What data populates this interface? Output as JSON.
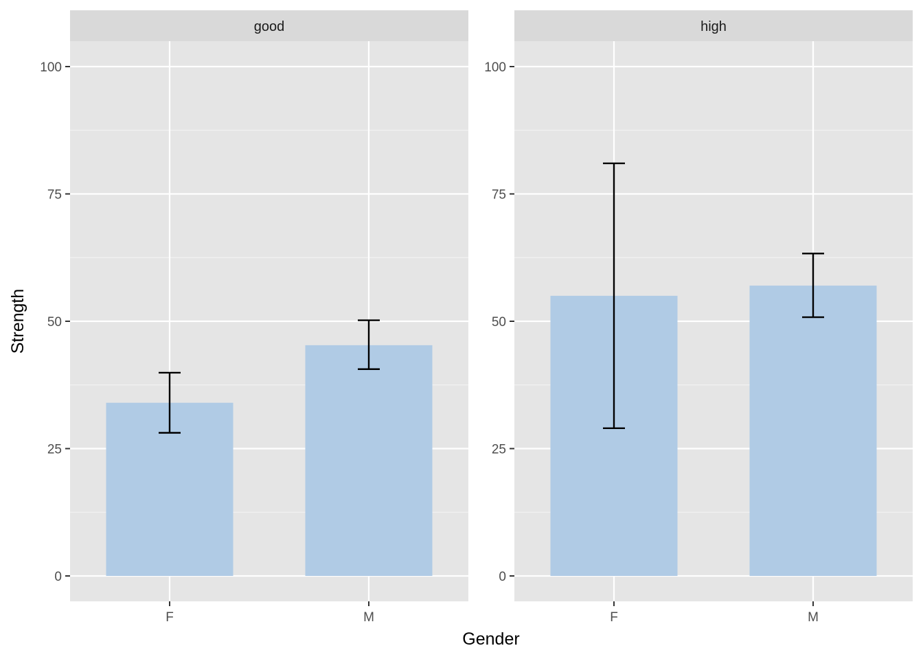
{
  "chart_data": {
    "type": "bar",
    "facet_by": "strip",
    "xlabel": "Gender",
    "ylabel": "Strength",
    "ylim": [
      -10,
      105
    ],
    "yticks": [
      0,
      25,
      50,
      75,
      100
    ],
    "y_tick_labels": [
      "0",
      "25",
      "50",
      "75",
      "100"
    ],
    "categories": [
      "F",
      "M"
    ],
    "grid": true,
    "bar_color": "#b0cbe5",
    "panel_color": "#e5e5e5",
    "strip_color": "#d9d9d9",
    "facets": [
      {
        "label": "good",
        "values": [
          34,
          45.3
        ],
        "error_low": [
          28.1,
          40.6
        ],
        "error_high": [
          39.9,
          50.2
        ]
      },
      {
        "label": "high",
        "values": [
          55,
          57
        ],
        "error_low": [
          29,
          50.8
        ],
        "error_high": [
          81,
          63.3
        ]
      }
    ]
  }
}
